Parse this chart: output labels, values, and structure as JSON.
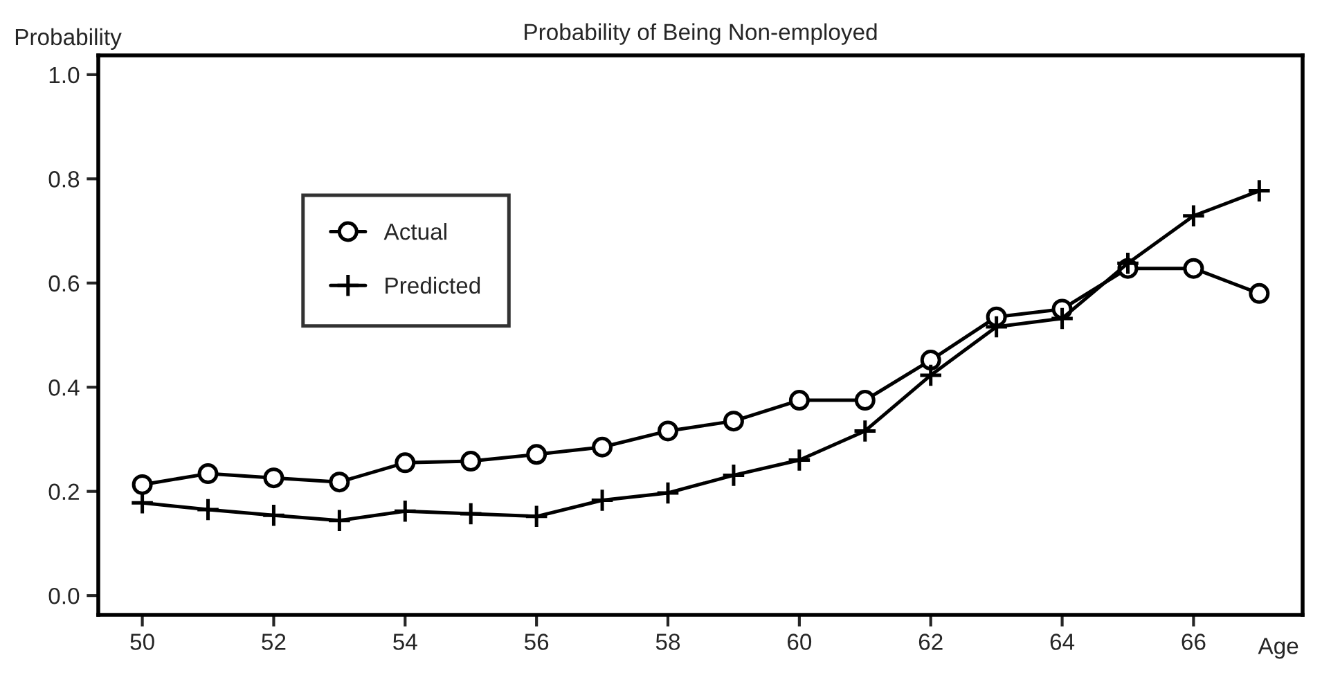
{
  "chart_data": {
    "type": "line",
    "title": "Probability of Being Non-employed",
    "xlabel": "Age",
    "ylabel": "Probability",
    "x": [
      50,
      51,
      52,
      53,
      54,
      55,
      56,
      57,
      58,
      59,
      60,
      61,
      62,
      63,
      64,
      65,
      66,
      67
    ],
    "series": [
      {
        "name": "Actual",
        "color": "#000000",
        "marker": "circle",
        "values": [
          0.213,
          0.234,
          0.226,
          0.218,
          0.255,
          0.258,
          0.271,
          0.285,
          0.316,
          0.335,
          0.375,
          0.375,
          0.452,
          0.535,
          0.55,
          0.628,
          0.628,
          0.58
        ]
      },
      {
        "name": "Predicted",
        "color": "#000000",
        "marker": "cross",
        "values": [
          0.178,
          0.165,
          0.154,
          0.144,
          0.162,
          0.157,
          0.152,
          0.183,
          0.197,
          0.231,
          0.26,
          0.316,
          0.423,
          0.516,
          0.532,
          0.638,
          0.729,
          0.777
        ]
      }
    ],
    "xlim": [
      49.33,
      67.66
    ],
    "xticks": [
      50,
      52,
      54,
      56,
      58,
      60,
      62,
      64,
      66
    ],
    "ylim": [
      -0.037,
      1.037
    ],
    "yticks": [
      {
        "value": 0,
        "label": "0.0"
      },
      {
        "value": 0.2,
        "label": "0.2"
      },
      {
        "value": 0.4,
        "label": "0.4"
      },
      {
        "value": 0.6,
        "label": "0.6"
      },
      {
        "value": 0.8,
        "label": "0.8"
      },
      {
        "value": 1,
        "label": "1.0"
      }
    ],
    "line_style": "solid",
    "grid": false,
    "legend": "top left"
  }
}
